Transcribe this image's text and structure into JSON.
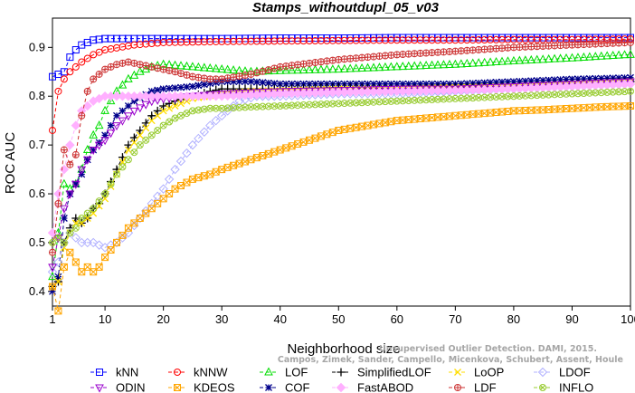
{
  "chart_data": {
    "type": "line",
    "title": "Stamps_withoutdupl_05_v03",
    "xlabel": "Neighborhood size",
    "ylabel": "ROC AUC",
    "xlim": [
      1,
      100
    ],
    "ylim": [
      0.37,
      0.96
    ],
    "x_ticks": [
      1,
      10,
      20,
      30,
      40,
      50,
      60,
      70,
      80,
      90,
      100
    ],
    "y_ticks": [
      0.4,
      0.5,
      0.6,
      0.7,
      0.8,
      0.9
    ],
    "grid": false,
    "legend_position": "bottom",
    "watermark": {
      "line1": "Unsupervised Outlier Detection. DAMI, 2015.",
      "line2": "Campos, Zimek, Sander, Campello, Micenkova, Schubert, Assent, Houle"
    },
    "series": [
      {
        "name": "kNN",
        "color": "#0000ff",
        "marker": "square",
        "points": [
          [
            1,
            0.84
          ],
          [
            2,
            0.845
          ],
          [
            3,
            0.85
          ],
          [
            4,
            0.88
          ],
          [
            5,
            0.895
          ],
          [
            6,
            0.905
          ],
          [
            7,
            0.91
          ],
          [
            8,
            0.915
          ],
          [
            10,
            0.918
          ],
          [
            15,
            0.918
          ],
          [
            20,
            0.918
          ],
          [
            30,
            0.918
          ],
          [
            40,
            0.919
          ],
          [
            50,
            0.919
          ],
          [
            60,
            0.92
          ],
          [
            70,
            0.92
          ],
          [
            80,
            0.92
          ],
          [
            90,
            0.92
          ],
          [
            100,
            0.92
          ]
        ]
      },
      {
        "name": "kNNW",
        "color": "#ff0000",
        "marker": "circle",
        "points": [
          [
            1,
            0.73
          ],
          [
            2,
            0.81
          ],
          [
            3,
            0.835
          ],
          [
            4,
            0.85
          ],
          [
            5,
            0.86
          ],
          [
            6,
            0.87
          ],
          [
            8,
            0.885
          ],
          [
            10,
            0.895
          ],
          [
            15,
            0.905
          ],
          [
            20,
            0.91
          ],
          [
            30,
            0.912
          ],
          [
            40,
            0.913
          ],
          [
            50,
            0.914
          ],
          [
            60,
            0.915
          ],
          [
            70,
            0.915
          ],
          [
            80,
            0.916
          ],
          [
            90,
            0.916
          ],
          [
            100,
            0.917
          ]
        ]
      },
      {
        "name": "LOF",
        "color": "#00dd00",
        "marker": "triangle-up",
        "points": [
          [
            1,
            0.43
          ],
          [
            2,
            0.52
          ],
          [
            3,
            0.62
          ],
          [
            4,
            0.61
          ],
          [
            5,
            0.62
          ],
          [
            6,
            0.65
          ],
          [
            7,
            0.69
          ],
          [
            8,
            0.72
          ],
          [
            9,
            0.74
          ],
          [
            10,
            0.77
          ],
          [
            12,
            0.81
          ],
          [
            14,
            0.835
          ],
          [
            16,
            0.85
          ],
          [
            18,
            0.86
          ],
          [
            20,
            0.865
          ],
          [
            25,
            0.86
          ],
          [
            30,
            0.855
          ],
          [
            35,
            0.85
          ],
          [
            40,
            0.852
          ],
          [
            50,
            0.855
          ],
          [
            60,
            0.86
          ],
          [
            70,
            0.865
          ],
          [
            80,
            0.872
          ],
          [
            90,
            0.878
          ],
          [
            100,
            0.885
          ]
        ]
      },
      {
        "name": "COF",
        "color": "#00008b",
        "marker": "asterisk",
        "points": [
          [
            1,
            0.4
          ],
          [
            2,
            0.43
          ],
          [
            3,
            0.55
          ],
          [
            4,
            0.6
          ],
          [
            5,
            0.62
          ],
          [
            6,
            0.64
          ],
          [
            7,
            0.67
          ],
          [
            8,
            0.69
          ],
          [
            10,
            0.72
          ],
          [
            12,
            0.76
          ],
          [
            15,
            0.79
          ],
          [
            18,
            0.81
          ],
          [
            20,
            0.815
          ],
          [
            25,
            0.82
          ],
          [
            30,
            0.83
          ],
          [
            35,
            0.83
          ],
          [
            40,
            0.825
          ],
          [
            50,
            0.825
          ],
          [
            60,
            0.825
          ],
          [
            70,
            0.825
          ],
          [
            80,
            0.83
          ],
          [
            90,
            0.835
          ],
          [
            100,
            0.838
          ]
        ]
      },
      {
        "name": "SimplifiedLOF",
        "color": "#000000",
        "marker": "plus",
        "points": [
          [
            1,
            0.41
          ],
          [
            2,
            0.42
          ],
          [
            3,
            0.5
          ],
          [
            4,
            0.53
          ],
          [
            5,
            0.55
          ],
          [
            6,
            0.54
          ],
          [
            7,
            0.55
          ],
          [
            8,
            0.57
          ],
          [
            9,
            0.58
          ],
          [
            10,
            0.6
          ],
          [
            12,
            0.65
          ],
          [
            14,
            0.7
          ],
          [
            16,
            0.73
          ],
          [
            18,
            0.76
          ],
          [
            20,
            0.78
          ],
          [
            22,
            0.79
          ],
          [
            25,
            0.8
          ],
          [
            28,
            0.81
          ],
          [
            30,
            0.815
          ],
          [
            35,
            0.815
          ],
          [
            40,
            0.815
          ],
          [
            50,
            0.818
          ],
          [
            60,
            0.815
          ],
          [
            70,
            0.818
          ],
          [
            80,
            0.82
          ],
          [
            90,
            0.825
          ],
          [
            100,
            0.83
          ]
        ]
      },
      {
        "name": "LoOP",
        "color": "#ffdd00",
        "marker": "cross",
        "points": [
          [
            1,
            0.41
          ],
          [
            2,
            0.42
          ],
          [
            3,
            0.49
          ],
          [
            4,
            0.52
          ],
          [
            5,
            0.54
          ],
          [
            6,
            0.54
          ],
          [
            7,
            0.55
          ],
          [
            8,
            0.56
          ],
          [
            10,
            0.59
          ],
          [
            12,
            0.64
          ],
          [
            14,
            0.69
          ],
          [
            16,
            0.72
          ],
          [
            18,
            0.75
          ],
          [
            20,
            0.77
          ],
          [
            25,
            0.795
          ],
          [
            30,
            0.805
          ],
          [
            35,
            0.81
          ],
          [
            40,
            0.812
          ],
          [
            50,
            0.815
          ],
          [
            60,
            0.815
          ],
          [
            70,
            0.818
          ],
          [
            80,
            0.82
          ],
          [
            90,
            0.825
          ],
          [
            100,
            0.83
          ]
        ]
      },
      {
        "name": "LDOF",
        "color": "#b0b0ff",
        "marker": "diamond",
        "points": [
          [
            1,
            0.44
          ],
          [
            2,
            0.46
          ],
          [
            3,
            0.5
          ],
          [
            4,
            0.52
          ],
          [
            6,
            0.5
          ],
          [
            8,
            0.5
          ],
          [
            10,
            0.49
          ],
          [
            12,
            0.5
          ],
          [
            14,
            0.52
          ],
          [
            16,
            0.55
          ],
          [
            18,
            0.58
          ],
          [
            20,
            0.61
          ],
          [
            22,
            0.65
          ],
          [
            25,
            0.7
          ],
          [
            28,
            0.74
          ],
          [
            30,
            0.76
          ],
          [
            33,
            0.79
          ],
          [
            36,
            0.8
          ],
          [
            40,
            0.8
          ],
          [
            50,
            0.805
          ],
          [
            60,
            0.805
          ],
          [
            70,
            0.81
          ],
          [
            80,
            0.815
          ],
          [
            90,
            0.82
          ],
          [
            100,
            0.825
          ]
        ]
      },
      {
        "name": "ODIN",
        "color": "#9900cc",
        "marker": "triangle-down",
        "points": [
          [
            1,
            0.45
          ],
          [
            2,
            0.51
          ],
          [
            3,
            0.57
          ],
          [
            4,
            0.6
          ],
          [
            5,
            0.62
          ],
          [
            6,
            0.65
          ],
          [
            7,
            0.67
          ],
          [
            8,
            0.69
          ],
          [
            10,
            0.71
          ],
          [
            12,
            0.74
          ],
          [
            15,
            0.77
          ],
          [
            18,
            0.79
          ],
          [
            20,
            0.795
          ],
          [
            25,
            0.8
          ],
          [
            30,
            0.805
          ],
          [
            40,
            0.81
          ],
          [
            50,
            0.812
          ],
          [
            60,
            0.815
          ],
          [
            70,
            0.815
          ],
          [
            80,
            0.82
          ],
          [
            90,
            0.825
          ],
          [
            100,
            0.83
          ]
        ]
      },
      {
        "name": "KDEOS",
        "color": "#ffa500",
        "marker": "square-x",
        "points": [
          [
            1,
            0.41
          ],
          [
            2,
            0.36
          ],
          [
            3,
            0.45
          ],
          [
            4,
            0.48
          ],
          [
            5,
            0.46
          ],
          [
            6,
            0.44
          ],
          [
            7,
            0.45
          ],
          [
            8,
            0.44
          ],
          [
            9,
            0.45
          ],
          [
            10,
            0.47
          ],
          [
            12,
            0.5
          ],
          [
            14,
            0.53
          ],
          [
            16,
            0.55
          ],
          [
            18,
            0.57
          ],
          [
            20,
            0.59
          ],
          [
            22,
            0.61
          ],
          [
            25,
            0.63
          ],
          [
            28,
            0.64
          ],
          [
            30,
            0.65
          ],
          [
            35,
            0.67
          ],
          [
            40,
            0.69
          ],
          [
            45,
            0.71
          ],
          [
            50,
            0.73
          ],
          [
            55,
            0.74
          ],
          [
            60,
            0.75
          ],
          [
            65,
            0.755
          ],
          [
            70,
            0.76
          ],
          [
            75,
            0.765
          ],
          [
            80,
            0.77
          ],
          [
            85,
            0.772
          ],
          [
            90,
            0.775
          ],
          [
            95,
            0.778
          ],
          [
            100,
            0.78
          ]
        ]
      },
      {
        "name": "FastABOD",
        "color": "#ffb0ff",
        "marker": "diamond-filled",
        "points": [
          [
            1,
            0.52
          ],
          [
            2,
            0.6
          ],
          [
            3,
            0.65
          ],
          [
            4,
            0.7
          ],
          [
            5,
            0.74
          ],
          [
            6,
            0.77
          ],
          [
            7,
            0.78
          ],
          [
            8,
            0.79
          ],
          [
            10,
            0.8
          ],
          [
            12,
            0.8
          ],
          [
            15,
            0.8
          ],
          [
            20,
            0.8
          ],
          [
            30,
            0.8
          ],
          [
            40,
            0.805
          ],
          [
            50,
            0.808
          ],
          [
            60,
            0.81
          ],
          [
            70,
            0.812
          ],
          [
            80,
            0.815
          ],
          [
            90,
            0.82
          ],
          [
            100,
            0.825
          ]
        ]
      },
      {
        "name": "LDF",
        "color": "#cc3333",
        "marker": "circle-plus",
        "points": [
          [
            1,
            0.48
          ],
          [
            2,
            0.58
          ],
          [
            3,
            0.69
          ],
          [
            4,
            0.66
          ],
          [
            5,
            0.68
          ],
          [
            6,
            0.76
          ],
          [
            7,
            0.81
          ],
          [
            8,
            0.835
          ],
          [
            10,
            0.855
          ],
          [
            12,
            0.865
          ],
          [
            14,
            0.87
          ],
          [
            16,
            0.865
          ],
          [
            18,
            0.86
          ],
          [
            20,
            0.855
          ],
          [
            22,
            0.85
          ],
          [
            25,
            0.84
          ],
          [
            28,
            0.835
          ],
          [
            30,
            0.835
          ],
          [
            35,
            0.845
          ],
          [
            40,
            0.86
          ],
          [
            50,
            0.875
          ],
          [
            60,
            0.885
          ],
          [
            70,
            0.892
          ],
          [
            80,
            0.9
          ],
          [
            90,
            0.905
          ],
          [
            100,
            0.91
          ]
        ]
      },
      {
        "name": "INFLO",
        "color": "#99cc33",
        "marker": "circle-x",
        "points": [
          [
            1,
            0.5
          ],
          [
            2,
            0.51
          ],
          [
            3,
            0.5
          ],
          [
            4,
            0.52
          ],
          [
            5,
            0.53
          ],
          [
            6,
            0.55
          ],
          [
            7,
            0.56
          ],
          [
            8,
            0.57
          ],
          [
            10,
            0.6
          ],
          [
            12,
            0.64
          ],
          [
            14,
            0.67
          ],
          [
            16,
            0.7
          ],
          [
            18,
            0.72
          ],
          [
            20,
            0.74
          ],
          [
            22,
            0.755
          ],
          [
            25,
            0.77
          ],
          [
            28,
            0.775
          ],
          [
            30,
            0.775
          ],
          [
            35,
            0.778
          ],
          [
            40,
            0.78
          ],
          [
            50,
            0.785
          ],
          [
            60,
            0.79
          ],
          [
            70,
            0.795
          ],
          [
            80,
            0.8
          ],
          [
            90,
            0.805
          ],
          [
            100,
            0.81
          ]
        ]
      }
    ]
  }
}
